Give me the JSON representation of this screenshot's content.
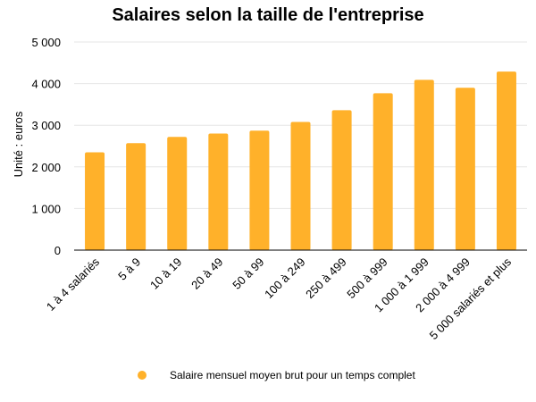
{
  "chart_data": {
    "type": "bar",
    "title": "Salaires selon la taille de l'entreprise",
    "ylabel": "Unité : euros",
    "xlabel": "",
    "categories": [
      "1 à 4 salariés",
      "5 à 9",
      "10 à 19",
      "20 à 49",
      "50 à 99",
      "100 à 249",
      "250 à 499",
      "500 à 999",
      "1 000 à 1 999",
      "2 000 à 4 999",
      "5 000 salariés et plus"
    ],
    "series": [
      {
        "name": "Salaire mensuel moyen brut pour un temps complet",
        "values": [
          2350,
          2570,
          2720,
          2800,
          2870,
          3080,
          3360,
          3770,
          4090,
          3900,
          4290
        ],
        "color": "#FFB12A"
      }
    ],
    "ylim": [
      0,
      5000
    ],
    "yticks": [
      0,
      1000,
      2000,
      3000,
      4000,
      5000
    ],
    "ytick_labels": [
      "0",
      "1 000",
      "2 000",
      "3 000",
      "4 000",
      "5 000"
    ],
    "grid": true,
    "legend_position": "bottom"
  }
}
